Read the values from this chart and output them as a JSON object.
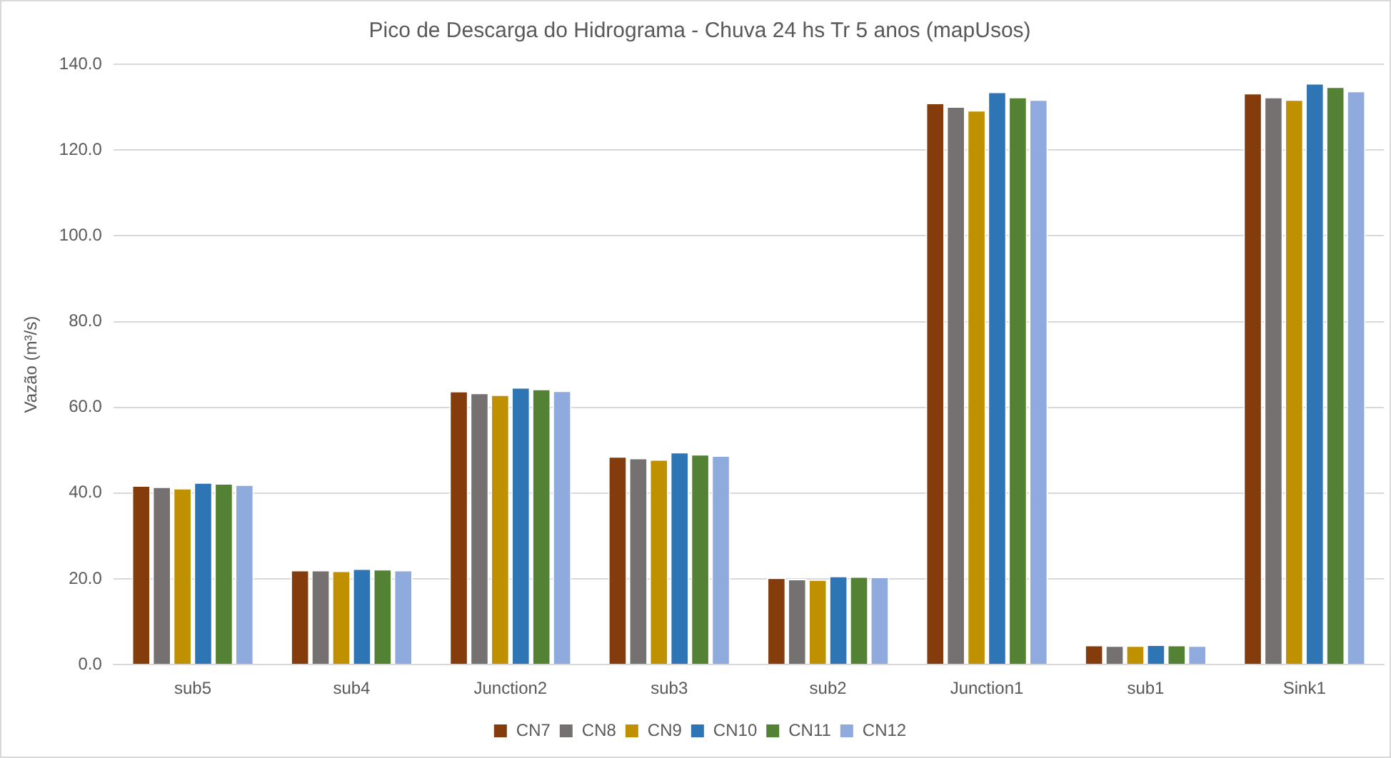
{
  "chart_data": {
    "type": "bar",
    "title": "Pico de Descarga do Hidrograma - Chuva 24 hs Tr 5 anos (mapUsos)",
    "ylabel": "Vazão (m³/s)",
    "categories": [
      "sub5",
      "sub4",
      "Junction2",
      "sub3",
      "sub2",
      "Junction1",
      "sub1",
      "Sink1"
    ],
    "series": [
      {
        "name": "CN7",
        "color": "#843c0c",
        "values": [
          41.8,
          22.1,
          63.8,
          48.6,
          20.3,
          131.0,
          4.6,
          133.3
        ]
      },
      {
        "name": "CN8",
        "color": "#767171",
        "values": [
          41.5,
          22.1,
          63.4,
          48.2,
          20.0,
          130.2,
          4.5,
          132.4
        ]
      },
      {
        "name": "CN9",
        "color": "#bf9000",
        "values": [
          41.2,
          21.9,
          63.0,
          47.9,
          19.9,
          129.3,
          4.5,
          131.8
        ]
      },
      {
        "name": "CN10",
        "color": "#2e75b6",
        "values": [
          42.5,
          22.4,
          64.7,
          49.6,
          20.7,
          133.6,
          4.7,
          135.6
        ]
      },
      {
        "name": "CN11",
        "color": "#548235",
        "values": [
          42.3,
          22.3,
          64.3,
          49.1,
          20.6,
          132.4,
          4.6,
          134.8
        ]
      },
      {
        "name": "CN12",
        "color": "#8faadc",
        "values": [
          42.0,
          22.1,
          63.9,
          48.8,
          20.5,
          131.8,
          4.5,
          133.8
        ]
      }
    ],
    "ylim": [
      0,
      140
    ],
    "yticks": [
      {
        "value": 0,
        "label": "0.0"
      },
      {
        "value": 20,
        "label": "20.0"
      },
      {
        "value": 40,
        "label": "40.0"
      },
      {
        "value": 60,
        "label": "60.0"
      },
      {
        "value": 80,
        "label": "80.0"
      },
      {
        "value": 100,
        "label": "100.0"
      },
      {
        "value": 120,
        "label": "120.0"
      },
      {
        "value": 140,
        "label": "140.0"
      }
    ],
    "grid": "y",
    "legend": "bottom"
  }
}
